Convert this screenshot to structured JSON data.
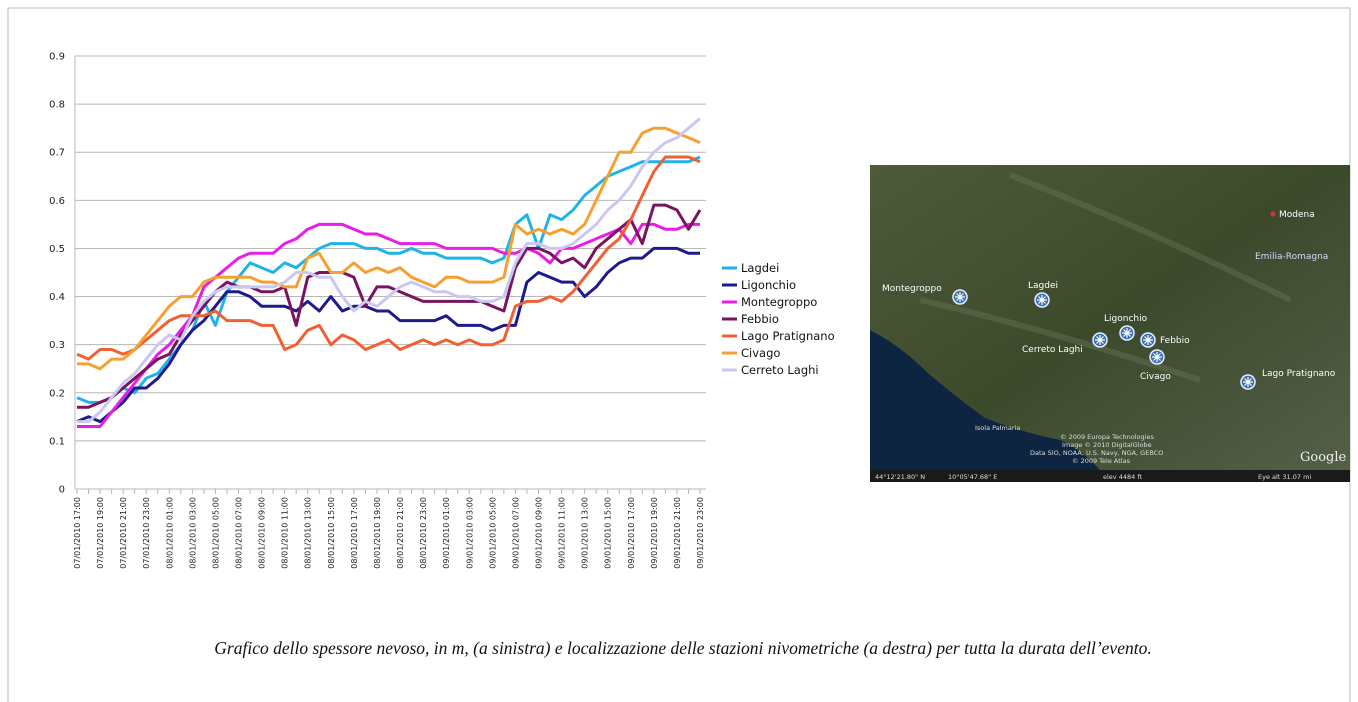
{
  "chart_data": {
    "type": "line",
    "categories": [
      "07/01/2010 17:00",
      null,
      "07/01/2010 19:00",
      null,
      "07/01/2010 21:00",
      null,
      "07/01/2010 23:00",
      null,
      "08/01/2010 01:00",
      null,
      "08/01/2010 03:00",
      null,
      "08/01/2010 05:00",
      null,
      "08/01/2010 07:00",
      null,
      "08/01/2010 09:00",
      null,
      "08/01/2010 11:00",
      null,
      "08/01/2010 13:00",
      null,
      "08/01/2010 15:00",
      null,
      "08/01/2010 17:00",
      null,
      "08/01/2010 19:00",
      null,
      "08/01/2010 21:00",
      null,
      "08/01/2010 23:00",
      null,
      "09/01/2010 01:00",
      null,
      "09/01/2010 03:00",
      null,
      "09/01/2010 05:00",
      null,
      "09/01/2010 07:00",
      null,
      "09/01/2010 09:00",
      null,
      "09/01/2010 11:00",
      null,
      "09/01/2010 13:00",
      null,
      "09/01/2010 15:00",
      null,
      "09/01/2010 17:00",
      null,
      "09/01/2010 19:00",
      null,
      "09/01/2010 21:00",
      null,
      "09/01/2010 23:00"
    ],
    "series": [
      {
        "name": "Lagdei",
        "color": "#1fb4e6",
        "values": [
          0.19,
          0.18,
          0.18,
          0.19,
          0.21,
          0.2,
          0.23,
          0.24,
          0.27,
          0.3,
          0.33,
          0.39,
          0.34,
          0.41,
          0.44,
          0.47,
          0.46,
          0.45,
          0.47,
          0.46,
          0.48,
          0.5,
          0.51,
          0.51,
          0.51,
          0.5,
          0.5,
          0.49,
          0.49,
          0.5,
          0.49,
          0.49,
          0.48,
          0.48,
          0.48,
          0.48,
          0.47,
          0.48,
          0.55,
          0.57,
          0.5,
          0.57,
          0.56,
          0.58,
          0.61,
          0.63,
          0.65,
          0.66,
          0.67,
          0.68,
          0.68,
          0.68,
          0.68,
          0.68,
          0.69
        ]
      },
      {
        "name": "Ligonchio",
        "color": "#1f1a8c",
        "values": [
          0.14,
          0.15,
          0.14,
          0.16,
          0.18,
          0.21,
          0.21,
          0.23,
          0.26,
          0.3,
          0.33,
          0.35,
          0.38,
          0.41,
          0.41,
          0.4,
          0.38,
          0.38,
          0.38,
          0.37,
          0.39,
          0.37,
          0.4,
          0.37,
          0.38,
          0.38,
          0.37,
          0.37,
          0.35,
          0.35,
          0.35,
          0.35,
          0.36,
          0.34,
          0.34,
          0.34,
          0.33,
          0.34,
          0.34,
          0.43,
          0.45,
          0.44,
          0.43,
          0.43,
          0.4,
          0.42,
          0.45,
          0.47,
          0.48,
          0.48,
          0.5,
          0.5,
          0.5,
          0.49,
          0.49
        ]
      },
      {
        "name": "Montegroppo",
        "color": "#e61ee6",
        "values": [
          0.13,
          0.13,
          0.13,
          0.16,
          0.19,
          0.22,
          0.25,
          0.28,
          0.3,
          0.33,
          0.36,
          0.42,
          0.44,
          0.46,
          0.48,
          0.49,
          0.49,
          0.49,
          0.51,
          0.52,
          0.54,
          0.55,
          0.55,
          0.55,
          0.54,
          0.53,
          0.53,
          0.52,
          0.51,
          0.51,
          0.51,
          0.51,
          0.5,
          0.5,
          0.5,
          0.5,
          0.5,
          0.49,
          0.49,
          0.5,
          0.49,
          0.47,
          0.5,
          0.5,
          0.51,
          0.52,
          0.53,
          0.54,
          0.51,
          0.55,
          0.55,
          0.54,
          0.54,
          0.55,
          0.55
        ]
      },
      {
        "name": "Febbio",
        "color": "#7a1460",
        "values": [
          0.17,
          0.17,
          0.18,
          0.19,
          0.21,
          0.23,
          0.25,
          0.27,
          0.28,
          0.32,
          0.35,
          0.38,
          0.41,
          0.43,
          0.42,
          0.42,
          0.41,
          0.41,
          0.42,
          0.34,
          0.44,
          0.45,
          0.45,
          0.45,
          0.44,
          0.38,
          0.42,
          0.42,
          0.41,
          0.4,
          0.39,
          0.39,
          0.39,
          0.39,
          0.39,
          0.39,
          0.38,
          0.37,
          0.46,
          0.5,
          0.5,
          0.49,
          0.47,
          0.48,
          0.46,
          0.5,
          0.52,
          0.54,
          0.56,
          0.51,
          0.59,
          0.59,
          0.58,
          0.54,
          0.58
        ]
      },
      {
        "name": "Lago Pratignano",
        "color": "#f06030",
        "values": [
          0.28,
          0.27,
          0.29,
          0.29,
          0.28,
          0.29,
          0.31,
          0.33,
          0.35,
          0.36,
          0.36,
          0.36,
          0.37,
          0.35,
          0.35,
          0.35,
          0.34,
          0.34,
          0.29,
          0.3,
          0.33,
          0.34,
          0.3,
          0.32,
          0.31,
          0.29,
          0.3,
          0.31,
          0.29,
          0.3,
          0.31,
          0.3,
          0.31,
          0.3,
          0.31,
          0.3,
          0.3,
          0.31,
          0.38,
          0.39,
          0.39,
          0.4,
          0.39,
          0.41,
          0.44,
          0.47,
          0.5,
          0.52,
          0.56,
          0.61,
          0.66,
          0.69,
          0.69,
          0.69,
          0.68
        ]
      },
      {
        "name": "Civago",
        "color": "#f5a030",
        "values": [
          0.26,
          0.26,
          0.25,
          0.27,
          0.27,
          0.29,
          0.32,
          0.35,
          0.38,
          0.4,
          0.4,
          0.43,
          0.44,
          0.44,
          0.44,
          0.44,
          0.43,
          0.43,
          0.42,
          0.42,
          0.48,
          0.49,
          0.45,
          0.45,
          0.47,
          0.45,
          0.46,
          0.45,
          0.46,
          0.44,
          0.43,
          0.42,
          0.44,
          0.44,
          0.43,
          0.43,
          0.43,
          0.44,
          0.55,
          0.53,
          0.54,
          0.53,
          0.54,
          0.53,
          0.55,
          0.6,
          0.65,
          0.7,
          0.7,
          0.74,
          0.75,
          0.75,
          0.74,
          0.73,
          0.72
        ]
      },
      {
        "name": "Cerreto Laghi",
        "color": "#c8c8f0",
        "values": [
          0.14,
          0.14,
          0.16,
          0.19,
          0.22,
          0.24,
          0.27,
          0.3,
          0.32,
          0.31,
          0.36,
          0.39,
          0.41,
          0.42,
          0.42,
          0.42,
          0.42,
          0.42,
          0.43,
          0.45,
          0.45,
          0.44,
          0.44,
          0.4,
          0.37,
          0.39,
          0.38,
          0.4,
          0.42,
          0.43,
          0.42,
          0.41,
          0.41,
          0.4,
          0.4,
          0.39,
          0.39,
          0.4,
          0.47,
          0.51,
          0.51,
          0.5,
          0.5,
          0.51,
          0.53,
          0.55,
          0.58,
          0.6,
          0.63,
          0.67,
          0.7,
          0.72,
          0.73,
          0.75,
          0.77
        ]
      }
    ],
    "ylim": [
      0,
      0.9
    ],
    "yticks": [
      0,
      0.1,
      0.2,
      0.3,
      0.4,
      0.5,
      0.6,
      0.7,
      0.8,
      0.9
    ],
    "grid": true,
    "legend": "right"
  },
  "map": {
    "labels": [
      "Modena",
      "Emilia-Romagna",
      "Montegroppo",
      "Lagdei",
      "Ligonchio",
      "Febbio",
      "Cerreto Laghi",
      "Civago",
      "Lago Pratignano",
      "Isola Palmaria"
    ],
    "logo": "Google",
    "credits": [
      "© 2009 Europa Technologies",
      "Image © 2010 DigitalGlobe",
      "Data SIO, NOAA, U.S. Navy, NGA, GEBCO",
      "© 2009 Tele Atlas"
    ],
    "status": [
      "44°12'21.80\" N",
      "10°05'47.68\" E",
      "elev 4484 ft",
      "Eye alt 31.07 mi"
    ]
  },
  "caption": "Grafico dello spessore nevoso, in m, (a sinistra) e localizzazione delle stazioni nivometriche (a destra) per tutta la durata dell’evento."
}
